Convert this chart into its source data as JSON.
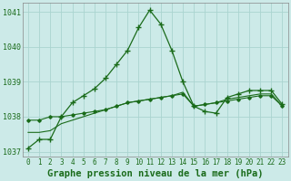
{
  "title": "Graphe pression niveau de la mer (hPa)",
  "bg_color": "#cceae8",
  "grid_color": "#aad4d0",
  "line_color": "#1a6b1a",
  "x_labels": [
    0,
    1,
    2,
    3,
    4,
    5,
    6,
    7,
    8,
    9,
    10,
    11,
    12,
    13,
    14,
    15,
    16,
    17,
    18,
    19,
    20,
    21,
    22,
    23
  ],
  "series1": [
    1037.1,
    1037.35,
    1037.35,
    1038.0,
    1038.4,
    1038.6,
    1038.8,
    1039.1,
    1039.5,
    1039.9,
    1040.55,
    1041.05,
    1040.65,
    1039.9,
    1039.0,
    1038.3,
    1038.15,
    1038.1,
    1038.55,
    1038.65,
    1038.75,
    1038.75,
    1038.75,
    1038.35
  ],
  "series2": [
    1037.9,
    1037.9,
    1038.0,
    1038.0,
    1038.05,
    1038.1,
    1038.15,
    1038.2,
    1038.3,
    1038.4,
    1038.45,
    1038.5,
    1038.55,
    1038.6,
    1038.65,
    1038.3,
    1038.35,
    1038.4,
    1038.45,
    1038.5,
    1038.55,
    1038.6,
    1038.6,
    1038.3
  ],
  "series3": [
    1037.55,
    1037.55,
    1037.6,
    1037.8,
    1037.9,
    1038.0,
    1038.1,
    1038.2,
    1038.3,
    1038.4,
    1038.45,
    1038.5,
    1038.55,
    1038.6,
    1038.7,
    1038.3,
    1038.35,
    1038.4,
    1038.5,
    1038.55,
    1038.6,
    1038.65,
    1038.65,
    1038.3
  ],
  "ylim": [
    1036.85,
    1041.25
  ],
  "yticks": [
    1037,
    1038,
    1039,
    1040,
    1041
  ],
  "title_fontsize": 7.5,
  "tick_fontsize": 6.0
}
